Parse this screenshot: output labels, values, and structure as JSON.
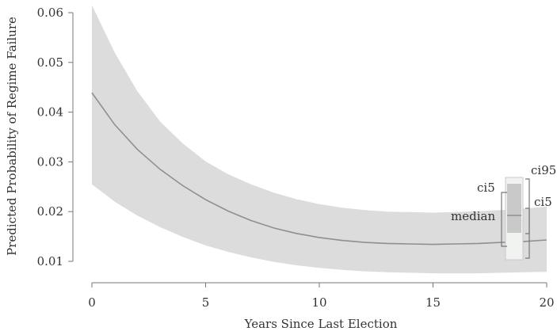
{
  "chart_data": {
    "type": "line",
    "xlabel": "Years Since Last Election",
    "ylabel": "Predicted Probability of Regime Failure",
    "xlim": [
      0,
      20
    ],
    "ylim": [
      0.01,
      0.06
    ],
    "x_ticks": [
      "0",
      "5",
      "10",
      "15",
      "20"
    ],
    "y_ticks": [
      "0.01",
      "0.02",
      "0.03",
      "0.04",
      "0.05",
      "0.06"
    ],
    "series": [
      {
        "x": [
          0,
          1,
          2,
          3,
          4,
          5,
          6,
          7,
          8,
          9,
          10,
          11,
          12,
          13,
          14,
          15,
          16,
          17,
          18,
          19,
          20
        ],
        "median": [
          0.0439,
          0.0375,
          0.0325,
          0.0285,
          0.0252,
          0.0224,
          0.0201,
          0.0182,
          0.0167,
          0.0156,
          0.0148,
          0.0142,
          0.0138,
          0.0136,
          0.0135,
          0.0134,
          0.0135,
          0.0136,
          0.0138,
          0.014,
          0.0143
        ],
        "ci5": [
          0.0255,
          0.022,
          0.0192,
          0.0169,
          0.0149,
          0.0132,
          0.0119,
          0.0108,
          0.0099,
          0.0092,
          0.0087,
          0.0083,
          0.008,
          0.0078,
          0.0077,
          0.0076,
          0.0076,
          0.0076,
          0.0077,
          0.0078,
          0.0079
        ],
        "ci95": [
          0.0615,
          0.052,
          0.0442,
          0.0381,
          0.0337,
          0.0301,
          0.0275,
          0.0255,
          0.0238,
          0.0225,
          0.0215,
          0.0208,
          0.0203,
          0.02,
          0.0199,
          0.0198,
          0.0199,
          0.0201,
          0.0203,
          0.0206,
          0.021
        ]
      }
    ],
    "legend": {
      "labels": [
        "ci5",
        "ci95",
        "median",
        "ci5"
      ]
    },
    "colors": {
      "band": "#dcdcdc",
      "line": "#8f8f8f",
      "axis": "#777777"
    }
  }
}
